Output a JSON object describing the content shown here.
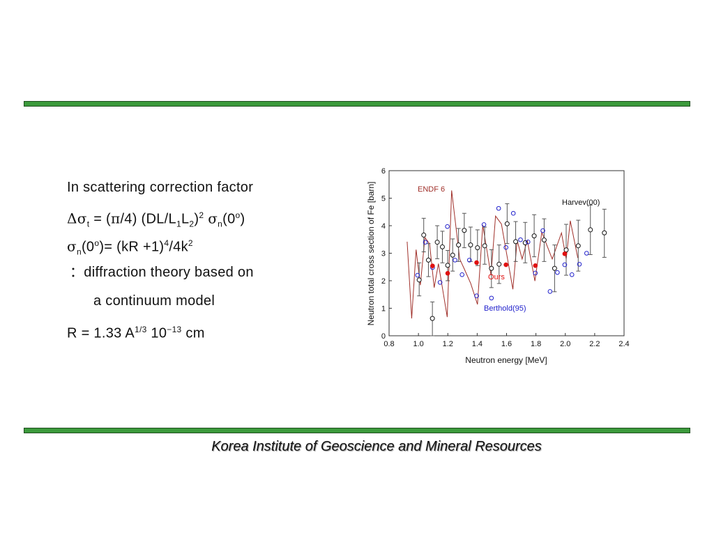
{
  "slide": {
    "lines": {
      "l1": "In scattering correction factor",
      "l2": {
        "delta_sigma": "Δσ",
        "sub_t": "t",
        "eq": " = (",
        "pi": "π",
        "rest1": "/4) (DL/L",
        "sub1": "1",
        "L": "L",
        "sub2": "2",
        "close": ")",
        "sup2": "2",
        "sp": " ",
        "sigma": "σ",
        "sub_n": "n",
        "tail": "(0",
        "deg": "o",
        "end": ")"
      },
      "l3": {
        "sigma": "σ",
        "sub_n": "n",
        "open": "(0",
        "deg": "o",
        "rest": ")= (kR +1)",
        "sup4": "4",
        "mid": "/4k",
        "sup2": "2"
      },
      "l4": "：diffraction theory based on",
      "l5": "a continuum model",
      "l6": {
        "start": "R = 1.33 A",
        "sup1": "1/3",
        "mid": " 10",
        "sup2": "−13",
        "end": " cm"
      }
    },
    "footer": "Korea Institute of Geoscience and Mineral Resources",
    "colors": {
      "bar": "#3c9a3c",
      "endf": "#a0302a",
      "ours": "#e01010",
      "berthold": "#2222cc",
      "harvev": "#111111"
    }
  },
  "chart_data": {
    "type": "scatter",
    "xlabel": "Neutron energy [MeV]",
    "ylabel": "Neutron total cross section of Fe [barn]",
    "xlim": [
      0.8,
      2.4
    ],
    "ylim": [
      0,
      6
    ],
    "xticks": [
      "0.8",
      "1.0",
      "1.2",
      "1.4",
      "1.6",
      "1.8",
      "2.0",
      "2.2",
      "2.4"
    ],
    "yticks": [
      "0",
      "1",
      "2",
      "3",
      "4",
      "5",
      "6"
    ],
    "grid": false,
    "annotations": {
      "endf": "ENDF 6",
      "harvev": "Harvev(00)",
      "ours": "Ours",
      "berthold": "Berthold(95)"
    },
    "series": [
      {
        "name": "ENDF 6",
        "kind": "line",
        "points": [
          [
            0.923,
            3.42
          ],
          [
            0.954,
            0.63
          ],
          [
            0.984,
            3.13
          ],
          [
            1.013,
            1.84
          ],
          [
            1.044,
            3.57
          ],
          [
            1.076,
            3.34
          ],
          [
            1.107,
            1.75
          ],
          [
            1.136,
            2.62
          ],
          [
            1.196,
            0.68
          ],
          [
            1.226,
            5.28
          ],
          [
            1.281,
            2.79
          ],
          [
            1.312,
            2.43
          ],
          [
            1.356,
            1.9
          ],
          [
            1.402,
            1.14
          ],
          [
            1.438,
            4.02
          ],
          [
            1.494,
            2.2
          ],
          [
            1.525,
            4.35
          ],
          [
            1.565,
            4.06
          ],
          [
            1.643,
            1.69
          ],
          [
            1.672,
            3.47
          ],
          [
            1.706,
            2.79
          ],
          [
            1.741,
            3.47
          ],
          [
            1.793,
            1.99
          ],
          [
            1.84,
            3.76
          ],
          [
            1.911,
            2.79
          ],
          [
            1.974,
            3.74
          ],
          [
            2.006,
            2.79
          ],
          [
            2.034,
            4.18
          ],
          [
            2.085,
            2.83
          ]
        ]
      },
      {
        "name": "Harvev(00)",
        "kind": "errorbar",
        "points": [
          [
            1.005,
            2.03,
            1.45,
            2.65
          ],
          [
            1.036,
            3.66,
            3.05,
            4.27
          ],
          [
            1.068,
            2.75,
            2.15,
            3.35
          ],
          [
            1.095,
            0.63,
            0,
            1.23
          ],
          [
            1.128,
            3.4,
            2.8,
            4.0
          ],
          [
            1.163,
            3.23,
            2.65,
            3.8
          ],
          [
            1.199,
            2.56,
            2.0,
            3.1
          ],
          [
            1.233,
            2.93,
            2.35,
            3.52
          ],
          [
            1.273,
            3.3,
            2.7,
            3.9
          ],
          [
            1.312,
            3.83,
            3.2,
            4.45
          ],
          [
            1.355,
            3.3,
            2.7,
            3.95
          ],
          [
            1.402,
            3.2,
            2.55,
            3.85
          ],
          [
            1.451,
            3.27,
            2.6,
            3.95
          ],
          [
            1.497,
            2.45,
            1.75,
            3.13
          ],
          [
            1.549,
            2.6,
            1.9,
            3.3
          ],
          [
            1.604,
            4.07,
            3.35,
            4.8
          ],
          [
            1.662,
            3.42,
            2.7,
            4.15
          ],
          [
            1.727,
            3.38,
            2.65,
            4.12
          ],
          [
            1.788,
            3.63,
            2.87,
            4.4
          ],
          [
            1.856,
            3.48,
            2.7,
            4.25
          ],
          [
            1.927,
            2.45,
            1.6,
            3.3
          ],
          [
            2.006,
            3.12,
            2.2,
            4.05
          ],
          [
            2.088,
            3.27,
            2.35,
            4.2
          ],
          [
            2.171,
            3.85,
            2.95,
            4.75
          ],
          [
            2.266,
            3.74,
            2.85,
            4.6
          ]
        ]
      },
      {
        "name": "Berthold(95)",
        "kind": "scatter",
        "points": [
          [
            0.994,
            2.2
          ],
          [
            1.047,
            3.4
          ],
          [
            1.096,
            2.48
          ],
          [
            1.147,
            1.94
          ],
          [
            1.197,
            3.97
          ],
          [
            1.249,
            2.75
          ],
          [
            1.297,
            2.22
          ],
          [
            1.347,
            2.75
          ],
          [
            1.396,
            1.45
          ],
          [
            1.446,
            4.04
          ],
          [
            1.497,
            1.37
          ],
          [
            1.546,
            4.63
          ],
          [
            1.596,
            3.21
          ],
          [
            1.646,
            4.45
          ],
          [
            1.695,
            3.49
          ],
          [
            1.746,
            3.41
          ],
          [
            1.796,
            2.28
          ],
          [
            1.847,
            3.82
          ],
          [
            1.896,
            1.61
          ],
          [
            1.946,
            2.3
          ],
          [
            1.996,
            2.58
          ],
          [
            2.045,
            2.22
          ],
          [
            2.096,
            2.6
          ],
          [
            2.145,
            3.0
          ]
        ]
      },
      {
        "name": "Ours",
        "kind": "scatter",
        "points": [
          [
            1.096,
            2.54
          ],
          [
            1.199,
            2.27
          ],
          [
            1.396,
            2.66
          ],
          [
            1.596,
            2.58
          ],
          [
            1.796,
            2.55
          ],
          [
            1.996,
            2.98
          ]
        ]
      }
    ]
  }
}
